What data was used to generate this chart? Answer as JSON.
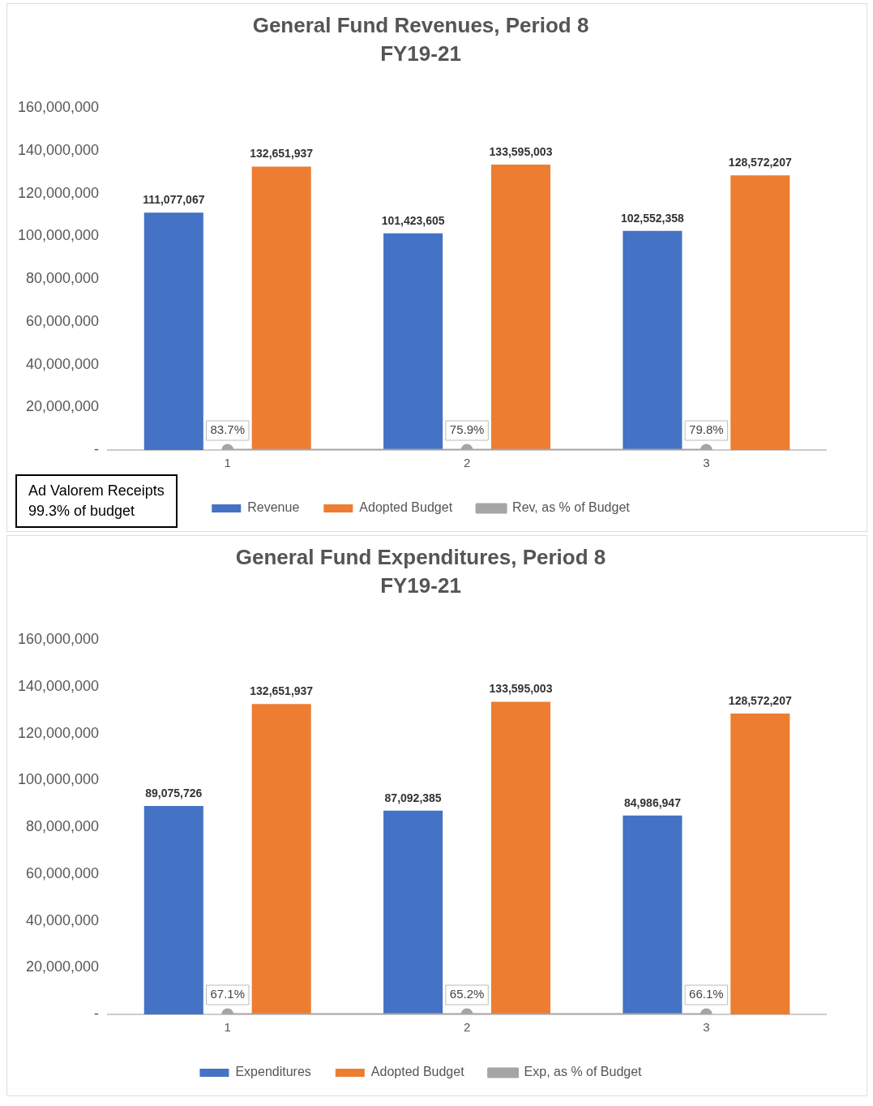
{
  "chart_data": [
    {
      "type": "bar",
      "title": "General Fund Revenues, Period 8",
      "subtitle": "FY19-21",
      "categories": [
        "1",
        "2",
        "3"
      ],
      "series": [
        {
          "name": "Revenue",
          "color": "#4472c4",
          "values": [
            111077067,
            101423605,
            102552358
          ],
          "value_labels": [
            "111,077,067",
            "101,423,605",
            "102,552,358"
          ]
        },
        {
          "name": "Adopted Budget",
          "color": "#ed7d31",
          "values": [
            132651937,
            133595003,
            128572207
          ],
          "value_labels": [
            "132,651,937",
            "133,595,003",
            "128,572,207"
          ]
        },
        {
          "name": "Rev, as % of Budget",
          "type": "line",
          "color": "#a5a5a5",
          "values": [
            83.7,
            75.9,
            79.8
          ],
          "value_labels": [
            "83.7%",
            "75.9%",
            "79.8%"
          ]
        }
      ],
      "ylim": [
        0,
        160000000
      ],
      "yticks": [
        {
          "value": 0,
          "label": "-"
        },
        {
          "value": 20000000,
          "label": "20,000,000"
        },
        {
          "value": 40000000,
          "label": "40,000,000"
        },
        {
          "value": 60000000,
          "label": "60,000,000"
        },
        {
          "value": 80000000,
          "label": "80,000,000"
        },
        {
          "value": 100000000,
          "label": "100,000,000"
        },
        {
          "value": 120000000,
          "label": "120,000,000"
        },
        {
          "value": 140000000,
          "label": "140,000,000"
        },
        {
          "value": 160000000,
          "label": "160,000,000"
        }
      ],
      "grid": false,
      "legend": "bottom",
      "marker": "circle",
      "annotations": [
        "Ad Valorem Receipts\n99.3% of budget"
      ]
    },
    {
      "type": "bar",
      "title": "General Fund Expenditures, Period 8",
      "subtitle": "FY19-21",
      "categories": [
        "1",
        "2",
        "3"
      ],
      "series": [
        {
          "name": "Expenditures",
          "color": "#4472c4",
          "values": [
            89075726,
            87092385,
            84986947
          ],
          "value_labels": [
            "89,075,726",
            "87,092,385",
            "84,986,947"
          ]
        },
        {
          "name": "Adopted Budget",
          "color": "#ed7d31",
          "values": [
            132651937,
            133595003,
            128572207
          ],
          "value_labels": [
            "132,651,937",
            "133,595,003",
            "128,572,207"
          ]
        },
        {
          "name": "Exp, as % of Budget",
          "type": "line",
          "color": "#a5a5a5",
          "values": [
            67.1,
            65.2,
            66.1
          ],
          "value_labels": [
            "67.1%",
            "65.2%",
            "66.1%"
          ]
        }
      ],
      "ylim": [
        0,
        160000000
      ],
      "yticks": [
        {
          "value": 0,
          "label": "-"
        },
        {
          "value": 20000000,
          "label": "20,000,000"
        },
        {
          "value": 40000000,
          "label": "40,000,000"
        },
        {
          "value": 60000000,
          "label": "60,000,000"
        },
        {
          "value": 80000000,
          "label": "80,000,000"
        },
        {
          "value": 100000000,
          "label": "100,000,000"
        },
        {
          "value": 120000000,
          "label": "120,000,000"
        },
        {
          "value": 140000000,
          "label": "140,000,000"
        },
        {
          "value": 160000000,
          "label": "160,000,000"
        }
      ],
      "grid": false,
      "legend": "bottom",
      "marker": "circle"
    }
  ]
}
